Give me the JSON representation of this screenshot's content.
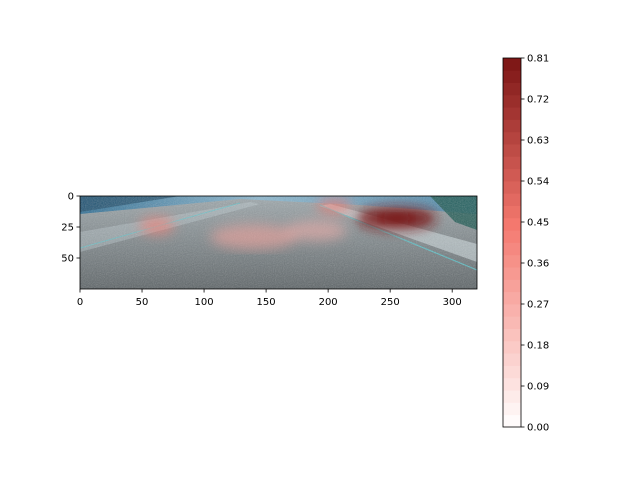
{
  "chart_data": {
    "type": "heatmap",
    "title": "",
    "xlabel": "",
    "ylabel": "",
    "image": {
      "width": 320,
      "height": 75,
      "xlim": [
        0,
        320
      ],
      "ylim": [
        75,
        0
      ],
      "xticks": [
        0,
        50,
        100,
        150,
        200,
        250,
        300
      ],
      "yticks": [
        0,
        25,
        50
      ],
      "description": "Dashcam road scene with red saliency overlay"
    },
    "hotspots": [
      {
        "x": 255,
        "y": 18,
        "rx": 32,
        "ry": 9,
        "value": 0.81
      },
      {
        "x": 205,
        "y": 8,
        "rx": 14,
        "ry": 6,
        "value": 0.45
      },
      {
        "x": 62,
        "y": 24,
        "rx": 14,
        "ry": 7,
        "value": 0.42
      },
      {
        "x": 140,
        "y": 33,
        "rx": 35,
        "ry": 10,
        "value": 0.3
      },
      {
        "x": 190,
        "y": 28,
        "rx": 25,
        "ry": 8,
        "value": 0.26
      }
    ],
    "colorbar": {
      "min": 0.0,
      "max": 0.81,
      "ticks": [
        "0.00",
        "0.09",
        "0.18",
        "0.27",
        "0.36",
        "0.45",
        "0.54",
        "0.63",
        "0.72",
        "0.81"
      ],
      "levels": 30,
      "colors": {
        "low": "#ffffff",
        "mid": "#f4786e",
        "high": "#7a1414"
      }
    }
  }
}
